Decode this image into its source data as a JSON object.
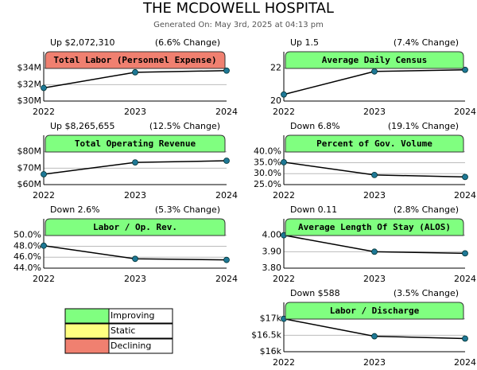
{
  "header": {
    "title": "THE MCDOWELL HOSPITAL",
    "subtitle": "Generated On: May 3rd, 2025 at 04:13 pm"
  },
  "legend": [
    {
      "label": "Improving",
      "color": "#80ff80"
    },
    {
      "label": "Static",
      "color": "#ffff80"
    },
    {
      "label": "Declining",
      "color": "#f08070"
    }
  ],
  "chart_data": [
    {
      "type": "line",
      "title": "Total Labor (Personnel Expense)",
      "change": "Up $2,072,310",
      "percent_change": "(6.6% Change)",
      "status_color": "#f08070",
      "categories": [
        "2022",
        "2023",
        "2024"
      ],
      "values": [
        31.6,
        33.5,
        33.7
      ],
      "ylim": [
        30,
        36
      ],
      "yticks": [
        {
          "value": 30,
          "label": "$30M"
        },
        {
          "value": 32,
          "label": "$32M"
        },
        {
          "value": 34,
          "label": "$34M"
        }
      ]
    },
    {
      "type": "line",
      "title": "Average Daily Census",
      "change": "Up 1.5",
      "percent_change": "(7.4% Change)",
      "status_color": "#80ff80",
      "categories": [
        "2022",
        "2023",
        "2024"
      ],
      "values": [
        20.4,
        21.8,
        21.9
      ],
      "ylim": [
        20,
        23
      ],
      "yticks": [
        20,
        22
      ]
    },
    {
      "type": "line",
      "title": "Total Operating Revenue",
      "change": "Up $8,265,655",
      "percent_change": "(12.5% Change)",
      "status_color": "#80ff80",
      "categories": [
        "2022",
        "2023",
        "2024"
      ],
      "values": [
        66.3,
        73.5,
        74.5
      ],
      "ylim": [
        60,
        90
      ],
      "yticks": [
        {
          "value": 60,
          "label": "$60M"
        },
        {
          "value": 70,
          "label": "$70M"
        },
        {
          "value": 80,
          "label": "$80M"
        }
      ]
    },
    {
      "type": "line",
      "title": "Percent of Gov. Volume",
      "change": "Down 6.8%",
      "percent_change": "(19.1% Change)",
      "status_color": "#80ff80",
      "categories": [
        "2022",
        "2023",
        "2024"
      ],
      "values": [
        35.2,
        29.4,
        28.5
      ],
      "ylim": [
        25,
        47.5
      ],
      "yticks": [
        {
          "value": 25,
          "label": "25.0%"
        },
        {
          "value": 30,
          "label": "30.0%"
        },
        {
          "value": 35,
          "label": "35.0%"
        },
        {
          "value": 40,
          "label": "40.0%"
        }
      ]
    },
    {
      "type": "line",
      "title": "Labor / Op. Rev.",
      "change": "Down 2.6%",
      "percent_change": "(5.3% Change)",
      "status_color": "#80ff80",
      "categories": [
        "2022",
        "2023",
        "2024"
      ],
      "values": [
        48.1,
        45.7,
        45.5
      ],
      "ylim": [
        44,
        53
      ],
      "yticks": [
        {
          "value": 44,
          "label": "44.0%"
        },
        {
          "value": 46,
          "label": "46.0%"
        },
        {
          "value": 48,
          "label": "48.0%"
        },
        {
          "value": 50,
          "label": "50.0%"
        }
      ]
    },
    {
      "type": "line",
      "title": "Average Length Of Stay (ALOS)",
      "change": "Down 0.11",
      "percent_change": "(2.8% Change)",
      "status_color": "#80ff80",
      "categories": [
        "2022",
        "2023",
        "2024"
      ],
      "values": [
        4.0,
        3.9,
        3.89
      ],
      "ylim": [
        3.8,
        4.1
      ],
      "yticks": [
        {
          "value": 3.8,
          "label": "3.80"
        },
        {
          "value": 3.9,
          "label": "3.90"
        },
        {
          "value": 4.0,
          "label": "4.00"
        }
      ]
    },
    {
      "type": "line",
      "title": "Labor / Discharge",
      "change": "Down $588",
      "percent_change": "(3.5% Change)",
      "status_color": "#80ff80",
      "categories": [
        "2022",
        "2023",
        "2024"
      ],
      "values": [
        17.0,
        16.47,
        16.4
      ],
      "ylim": [
        16,
        17.5
      ],
      "yticks": [
        {
          "value": 16,
          "label": "$16k"
        },
        {
          "value": 16.5,
          "label": "$16.5k"
        },
        {
          "value": 17,
          "label": "$17k"
        }
      ]
    }
  ]
}
